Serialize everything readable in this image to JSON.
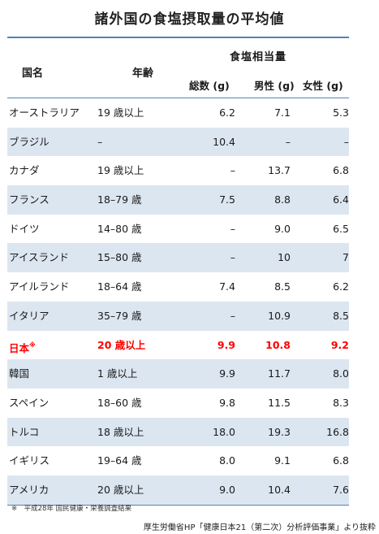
{
  "title": "諸外国の食塩摂取量の平均値",
  "header": {
    "country": "国名",
    "age": "年齢",
    "salt": "食塩相当量",
    "total": "総数 (g)",
    "male": "男性 (g)",
    "female": "女性 (g)"
  },
  "rows": [
    {
      "country": "オーストラリア",
      "mark": "",
      "age": "19 歳以上",
      "total": "6.2",
      "male": "7.1",
      "female": "5.3"
    },
    {
      "country": "ブラジル",
      "mark": "",
      "age": "–",
      "total": "10.4",
      "male": "–",
      "female": "–"
    },
    {
      "country": "カナダ",
      "mark": "",
      "age": "19 歳以上",
      "total": "–",
      "male": "13.7",
      "female": "6.8"
    },
    {
      "country": "フランス",
      "mark": "",
      "age": "18–79 歳",
      "total": "7.5",
      "male": "8.8",
      "female": "6.4"
    },
    {
      "country": "ドイツ",
      "mark": "",
      "age": "14–80 歳",
      "total": "–",
      "male": "9.0",
      "female": "6.5"
    },
    {
      "country": "アイスランド",
      "mark": "",
      "age": "15–80 歳",
      "total": "–",
      "male": "10",
      "female": "7"
    },
    {
      "country": "アイルランド",
      "mark": "",
      "age": "18–64 歳",
      "total": "7.4",
      "male": "8.5",
      "female": "6.2"
    },
    {
      "country": "イタリア",
      "mark": "",
      "age": "35–79 歳",
      "total": "–",
      "male": "10.9",
      "female": "8.5"
    },
    {
      "country": "日本",
      "mark": "※",
      "age": "20 歳以上",
      "total": "9.9",
      "male": "10.8",
      "female": "9.2"
    },
    {
      "country": "韓国",
      "mark": "",
      "age": "1 歳以上",
      "total": "9.9",
      "male": "11.7",
      "female": "8.0"
    },
    {
      "country": "スペイン",
      "mark": "",
      "age": "18–60 歳",
      "total": "9.8",
      "male": "11.5",
      "female": "8.3"
    },
    {
      "country": "トルコ",
      "mark": "",
      "age": "18 歳以上",
      "total": "18.0",
      "male": "19.3",
      "female": "16.8"
    },
    {
      "country": "イギリス",
      "mark": "",
      "age": "19–64 歳",
      "total": "8.0",
      "male": "9.1",
      "female": "6.8"
    },
    {
      "country": "アメリカ",
      "mark": "",
      "age": "20 歳以上",
      "total": "9.0",
      "male": "10.4",
      "female": "7.6"
    }
  ],
  "highlight_color": "#ff0000",
  "shade_color": "#dce6f1",
  "rule_color": "#4f81bd",
  "footnote": "※　平成28年 国民健康・栄養調査結果",
  "source": "厚生労働省HP「健康日本21（第二次）分析評価事業」より抜粋"
}
